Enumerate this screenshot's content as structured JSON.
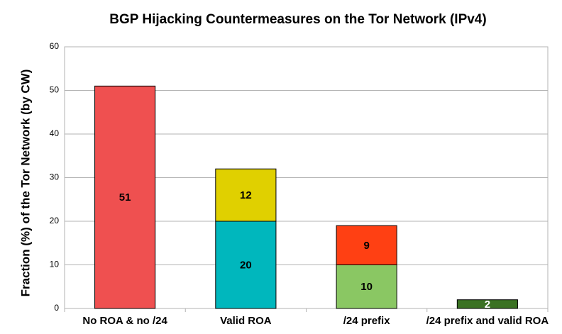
{
  "chart_data": {
    "type": "stacked_bar",
    "title": "BGP Hijacking Countermeasures on the Tor Network (IPv4)",
    "y_label": "Fraction (%) of the Tor Network (by CW)",
    "categories": [
      "No ROA & no /24",
      "Valid ROA",
      "/24 prefix",
      "/24 prefix and valid ROA"
    ],
    "stacks": [
      [
        {
          "value": 51,
          "color": "#ef5050",
          "label_color": "#000000"
        }
      ],
      [
        {
          "value": 20,
          "color": "#00b7bd",
          "label_color": "#000000"
        },
        {
          "value": 12,
          "color": "#e0d000",
          "label_color": "#000000"
        }
      ],
      [
        {
          "value": 10,
          "color": "#8ac763",
          "label_color": "#000000"
        },
        {
          "value": 9,
          "color": "#ff4013",
          "label_color": "#000000"
        }
      ],
      [
        {
          "value": 2,
          "color": "#3b7223",
          "label_color": "#ffffff"
        }
      ]
    ],
    "ylim": [
      0,
      60
    ],
    "yticks": [
      0,
      10,
      20,
      30,
      40,
      50,
      60
    ],
    "grid": true
  }
}
